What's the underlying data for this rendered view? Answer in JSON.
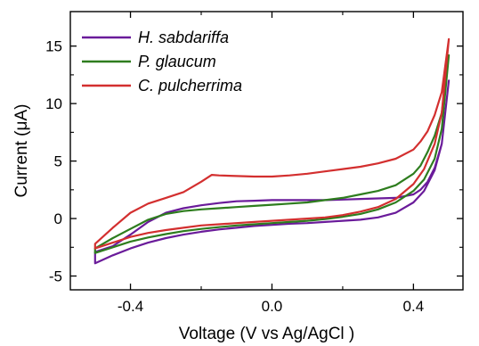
{
  "chart_data": {
    "type": "line",
    "xlabel": "Voltage (V vs Ag/AgCl )",
    "ylabel": "Current (μA)",
    "xlim": [
      -0.57,
      0.54
    ],
    "ylim": [
      -6.2,
      18
    ],
    "xticks": [
      -0.4,
      0.0,
      0.4
    ],
    "xtick_labels": [
      "-0.4",
      "0.0",
      "0.4"
    ],
    "yticks": [
      -5,
      0,
      5,
      10,
      15
    ],
    "ytick_labels": [
      "-5",
      "0",
      "5",
      "10",
      "15"
    ],
    "legend_position": "top-left",
    "series": [
      {
        "name": "H. sabdariffa",
        "color": "#6a1b9a",
        "x": [
          -0.5,
          -0.45,
          -0.4,
          -0.35,
          -0.3,
          -0.25,
          -0.2,
          -0.15,
          -0.1,
          -0.05,
          0.0,
          0.05,
          0.1,
          0.15,
          0.2,
          0.25,
          0.3,
          0.35,
          0.4,
          0.43,
          0.46,
          0.48,
          0.5,
          0.5,
          0.48,
          0.46,
          0.44,
          0.42,
          0.4,
          0.35,
          0.3,
          0.25,
          0.2,
          0.15,
          0.1,
          0.05,
          0.0,
          -0.05,
          -0.1,
          -0.15,
          -0.2,
          -0.25,
          -0.3,
          -0.35,
          -0.4,
          -0.45,
          -0.5
        ],
        "y": [
          -3.9,
          -3.2,
          -2.6,
          -2.1,
          -1.7,
          -1.4,
          -1.15,
          -0.95,
          -0.8,
          -0.65,
          -0.55,
          -0.45,
          -0.4,
          -0.3,
          -0.2,
          -0.1,
          0.1,
          0.5,
          1.4,
          2.4,
          4.2,
          6.5,
          12.0,
          12.0,
          6.5,
          4.4,
          3.2,
          2.5,
          2.1,
          1.8,
          1.75,
          1.7,
          1.65,
          1.6,
          1.6,
          1.6,
          1.6,
          1.55,
          1.5,
          1.35,
          1.15,
          0.9,
          0.5,
          -0.3,
          -1.4,
          -2.4,
          -2.9
        ]
      },
      {
        "name": "P. glaucum",
        "color": "#2e7d1e",
        "x": [
          -0.5,
          -0.45,
          -0.4,
          -0.35,
          -0.3,
          -0.25,
          -0.2,
          -0.15,
          -0.1,
          -0.05,
          0.0,
          0.05,
          0.1,
          0.15,
          0.2,
          0.25,
          0.3,
          0.35,
          0.4,
          0.43,
          0.46,
          0.48,
          0.5,
          0.5,
          0.48,
          0.46,
          0.44,
          0.42,
          0.4,
          0.35,
          0.3,
          0.25,
          0.2,
          0.15,
          0.1,
          0.05,
          0.0,
          -0.05,
          -0.1,
          -0.15,
          -0.2,
          -0.25,
          -0.3,
          -0.35,
          -0.4,
          -0.45,
          -0.5
        ],
        "y": [
          -3.0,
          -2.5,
          -2.0,
          -1.65,
          -1.35,
          -1.1,
          -0.9,
          -0.75,
          -0.6,
          -0.5,
          -0.4,
          -0.3,
          -0.2,
          -0.05,
          0.15,
          0.4,
          0.8,
          1.4,
          2.4,
          3.4,
          5.2,
          7.8,
          14.2,
          14.2,
          9.2,
          7.2,
          5.8,
          4.6,
          3.9,
          2.9,
          2.4,
          2.1,
          1.8,
          1.6,
          1.4,
          1.3,
          1.2,
          1.1,
          1.0,
          0.9,
          0.8,
          0.65,
          0.4,
          -0.1,
          -0.9,
          -1.7,
          -2.6
        ]
      },
      {
        "name": "C. pulcherrima",
        "color": "#d32f2f",
        "x": [
          -0.5,
          -0.45,
          -0.4,
          -0.35,
          -0.3,
          -0.25,
          -0.2,
          -0.15,
          -0.1,
          -0.05,
          0.0,
          0.05,
          0.1,
          0.15,
          0.2,
          0.25,
          0.3,
          0.35,
          0.4,
          0.43,
          0.46,
          0.48,
          0.5,
          0.5,
          0.48,
          0.46,
          0.44,
          0.42,
          0.4,
          0.35,
          0.3,
          0.25,
          0.2,
          0.15,
          0.1,
          0.05,
          0.0,
          -0.05,
          -0.1,
          -0.15,
          -0.17,
          -0.2,
          -0.25,
          -0.3,
          -0.35,
          -0.4,
          -0.45,
          -0.5
        ],
        "y": [
          -2.6,
          -2.1,
          -1.6,
          -1.25,
          -1.0,
          -0.8,
          -0.6,
          -0.5,
          -0.4,
          -0.3,
          -0.2,
          -0.1,
          0.0,
          0.1,
          0.3,
          0.6,
          1.0,
          1.7,
          3.0,
          4.3,
          6.5,
          9.2,
          15.6,
          15.6,
          11.0,
          9.0,
          7.6,
          6.7,
          6.0,
          5.2,
          4.8,
          4.5,
          4.3,
          4.1,
          3.9,
          3.75,
          3.65,
          3.65,
          3.7,
          3.75,
          3.8,
          3.2,
          2.3,
          1.8,
          1.3,
          0.5,
          -0.8,
          -2.2
        ]
      }
    ]
  }
}
